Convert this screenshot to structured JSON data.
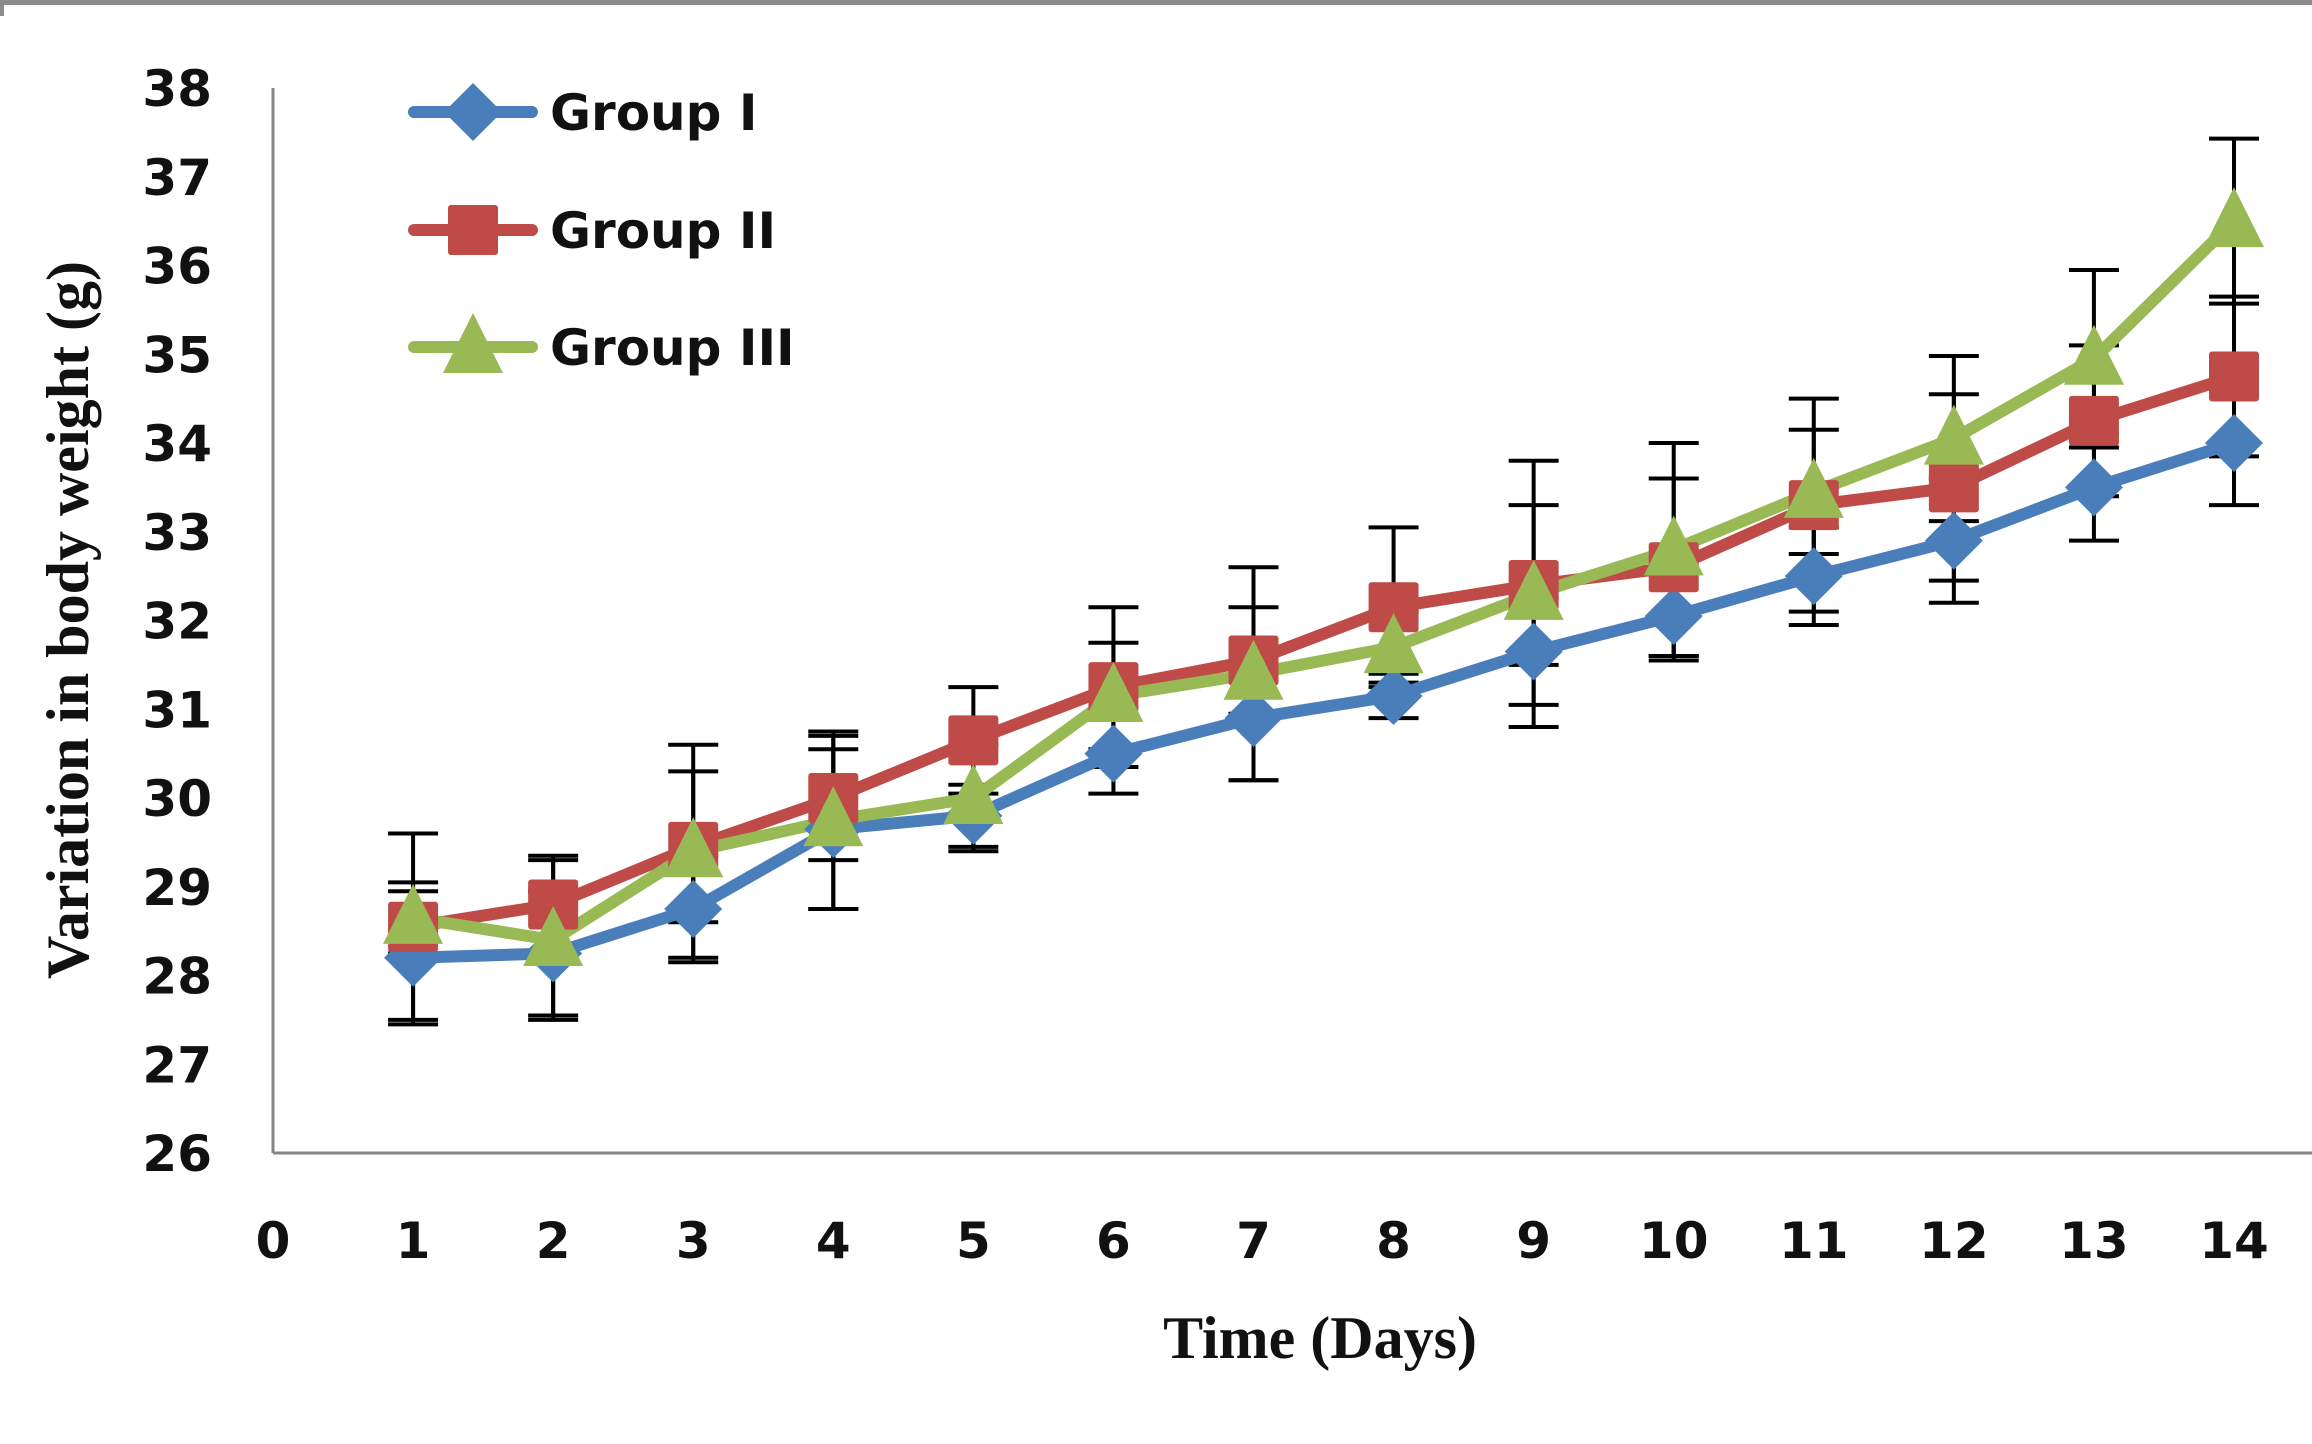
{
  "chart_data": {
    "type": "line",
    "title": "",
    "xlabel": "Time (Days)",
    "ylabel": "Variation in body weight (g)",
    "xlim": [
      0,
      14
    ],
    "ylim": [
      26,
      38
    ],
    "x_ticks": [
      "0",
      "1",
      "2",
      "3",
      "4",
      "5",
      "6",
      "7",
      "8",
      "9",
      "10",
      "11",
      "12",
      "13",
      "14"
    ],
    "y_ticks": [
      "26",
      "27",
      "28",
      "29",
      "30",
      "31",
      "32",
      "33",
      "34",
      "35",
      "36",
      "37",
      "38"
    ],
    "grid": false,
    "legend_position": "top-left",
    "x": [
      1,
      2,
      3,
      4,
      5,
      6,
      7,
      8,
      9,
      10,
      11,
      12,
      13,
      14
    ],
    "series": [
      {
        "name": "Group I",
        "color": "#4a7ebb",
        "marker": "diamond",
        "values": [
          28.2,
          28.25,
          28.75,
          29.65,
          29.8,
          30.5,
          30.9,
          31.15,
          31.65,
          32.05,
          32.5,
          32.9,
          33.5,
          34.0
        ],
        "errors": [
          0.75,
          0.7,
          0.6,
          0.9,
          0.35,
          0.45,
          0.7,
          0.25,
          0.6,
          0.5,
          0.55,
          0.7,
          0.6,
          0.7
        ]
      },
      {
        "name": "Group II",
        "color": "#be4b48",
        "marker": "square",
        "values": [
          28.55,
          28.8,
          29.45,
          30.0,
          30.65,
          31.25,
          31.55,
          32.15,
          32.4,
          32.6,
          33.3,
          33.5,
          34.25,
          34.75
        ],
        "errors": [
          1.05,
          0.55,
          0.85,
          0.7,
          0.6,
          0.9,
          0.6,
          0.9,
          0.9,
          1.0,
          1.2,
          1.05,
          0.85,
          0.9
        ]
      },
      {
        "name": "Group III",
        "color": "#98b954",
        "marker": "triangle",
        "values": [
          28.65,
          28.4,
          29.4,
          29.75,
          30.0,
          31.15,
          31.4,
          31.7,
          32.3,
          32.8,
          33.45,
          34.05,
          34.95,
          36.5
        ],
        "errors": [
          0.4,
          0.9,
          1.2,
          1.0,
          0.6,
          0.6,
          1.2,
          0.4,
          1.5,
          1.2,
          0.7,
          0.93,
          1.0,
          0.93
        ]
      }
    ]
  }
}
